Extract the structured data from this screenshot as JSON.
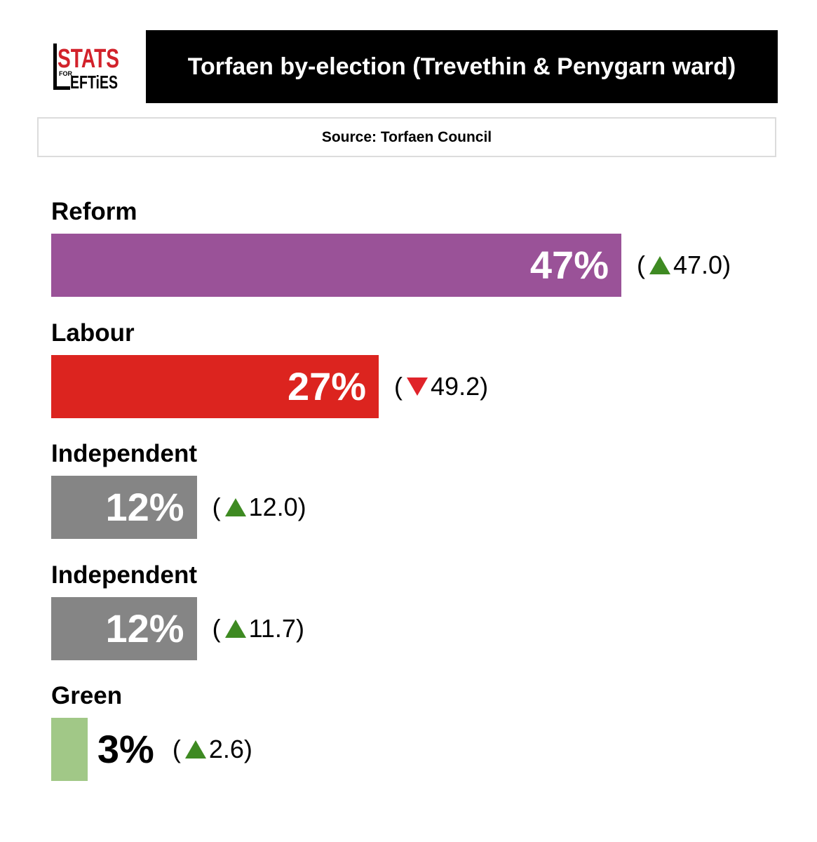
{
  "logo": {
    "line1": "STATS",
    "line2": "FOR",
    "line3": "LEFTIES",
    "color": "#d2222b"
  },
  "title": "Torfaen by-election (Trevethin & Penygarn ward)",
  "source": "Source: Torfaen Council",
  "chart_data": {
    "type": "bar",
    "orientation": "horizontal",
    "categories": [
      "Reform",
      "Labour",
      "Independent",
      "Independent",
      "Green"
    ],
    "values": [
      47,
      27,
      12,
      12,
      3
    ],
    "value_labels": [
      "47%",
      "27%",
      "12%",
      "12%",
      "3%"
    ],
    "changes": [
      47.0,
      -49.2,
      12.0,
      11.7,
      2.6
    ],
    "change_labels": [
      "47.0",
      "49.2",
      "12.0",
      "11.7",
      "2.6"
    ],
    "colors": [
      "#9a5298",
      "#dc241f",
      "#858585",
      "#858585",
      "#a1c887"
    ],
    "up_color": "#3e8a22",
    "down_color": "#e0232a",
    "title": "Torfaen by-election (Trevethin & Penygarn ward)",
    "xlim": [
      0,
      47
    ]
  }
}
